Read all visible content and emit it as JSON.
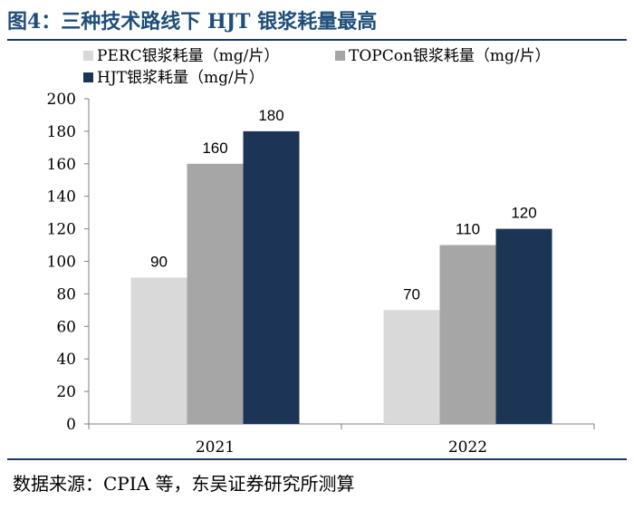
{
  "title": "图4：三种技术路线下 HJT 银浆耗量最高",
  "source": "数据来源：CPIA 等，东吴证券研究所测算",
  "colors": {
    "perc": "#d9d9d9",
    "topcon": "#a6a6a6",
    "hjt": "#1c3557",
    "title": "#1f4e79"
  },
  "chart_data": {
    "type": "bar",
    "categories": [
      "2021",
      "2022"
    ],
    "series": [
      {
        "name": "PERC银浆耗量（mg/片）",
        "values": [
          90,
          70
        ]
      },
      {
        "name": "TOPCon银浆耗量（mg/片）",
        "values": [
          160,
          110
        ]
      },
      {
        "name": "HJT银浆耗量（mg/片）",
        "values": [
          180,
          120
        ]
      }
    ],
    "ylim": [
      0,
      200
    ],
    "yticks": [
      0,
      20,
      40,
      60,
      80,
      100,
      120,
      140,
      160,
      180,
      200
    ],
    "legend": "top-left",
    "grid": false
  }
}
